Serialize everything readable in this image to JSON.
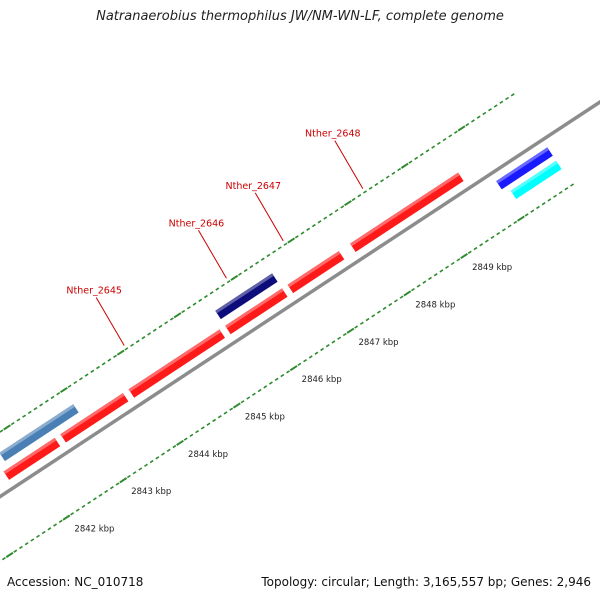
{
  "title": "Natranaerobius thermophilus JW/NM-WN-LF, complete genome",
  "footer": {
    "accession": "Accession: NC_010718",
    "summary": "Topology: circular; Length: 3,165,557 bp; Genes: 2,946"
  },
  "colors": {
    "backbone": "#8c8c8c",
    "tick": "#2e8b2e",
    "gene_label": "#cc0000",
    "kbp_label": "#222222"
  },
  "chart_data": {
    "type": "genome-map",
    "range_kbp": [
      2841.5,
      2849.9
    ],
    "scale_ticks_kbp": [
      2842,
      2843,
      2844,
      2845,
      2846,
      2847,
      2848,
      2849
    ],
    "scale_labels": [
      "2842 kbp",
      "2843 kbp",
      "2844 kbp",
      "2845 kbp",
      "2846 kbp",
      "2847 kbp",
      "2848 kbp",
      "2849 kbp"
    ],
    "gene_labels": [
      {
        "text": "Nther_2645",
        "kbp": 2844.1
      },
      {
        "text": "Nther_2646",
        "kbp": 2845.9
      },
      {
        "text": "Nther_2647",
        "kbp": 2846.9
      },
      {
        "text": "Nther_2648",
        "kbp": 2848.3
      }
    ],
    "features": [
      {
        "name": "seg-1",
        "start_kbp": 2841.6,
        "end_kbp": 2842.5,
        "track": "inner-1",
        "color": "#ff1a1a"
      },
      {
        "name": "seg-2",
        "start_kbp": 2842.6,
        "end_kbp": 2843.7,
        "track": "inner-1",
        "color": "#ff1a1a"
      },
      {
        "name": "seg-3",
        "start_kbp": 2843.8,
        "end_kbp": 2845.4,
        "track": "inner-1",
        "color": "#ff1a1a"
      },
      {
        "name": "seg-4",
        "start_kbp": 2845.5,
        "end_kbp": 2846.5,
        "track": "inner-1",
        "color": "#ff1a1a"
      },
      {
        "name": "seg-5",
        "start_kbp": 2846.6,
        "end_kbp": 2847.5,
        "track": "inner-1",
        "color": "#ff1a1a"
      },
      {
        "name": "seg-6",
        "start_kbp": 2847.7,
        "end_kbp": 2849.6,
        "track": "inner-1",
        "color": "#ff1a1a"
      },
      {
        "name": "seg-7",
        "start_kbp": 2841.7,
        "end_kbp": 2843.0,
        "track": "inner-2",
        "color": "#4a7fb5"
      },
      {
        "name": "seg-8",
        "start_kbp": 2845.5,
        "end_kbp": 2846.5,
        "track": "inner-2",
        "color": "#0c0c7a"
      },
      {
        "name": "seg-9",
        "start_kbp": 2850.0,
        "end_kbp": 2850.9,
        "track": "outer-1",
        "color": "#1a1aff"
      },
      {
        "name": "seg-10",
        "start_kbp": 2850.1,
        "end_kbp": 2850.9,
        "track": "outer-2",
        "color": "#00ffff"
      }
    ]
  }
}
